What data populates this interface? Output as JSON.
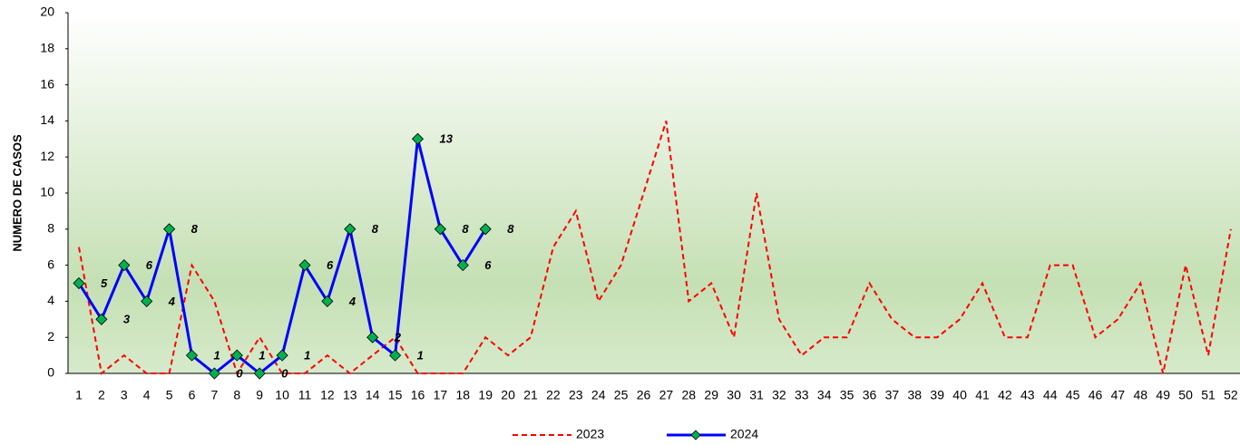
{
  "chart_data": {
    "type": "line",
    "y_label": "NUMERO DE CASOS",
    "categories": [
      1,
      2,
      3,
      4,
      5,
      6,
      7,
      8,
      9,
      10,
      11,
      12,
      13,
      14,
      15,
      16,
      17,
      18,
      19,
      20,
      21,
      22,
      23,
      24,
      25,
      26,
      27,
      28,
      29,
      30,
      31,
      32,
      33,
      34,
      35,
      36,
      37,
      38,
      39,
      40,
      41,
      42,
      43,
      44,
      45,
      46,
      47,
      48,
      49,
      50,
      51,
      52
    ],
    "series": [
      {
        "name": "2023",
        "color": "#ff0000",
        "dashed": true,
        "values": [
          7,
          0,
          1,
          0,
          0,
          6,
          4,
          0,
          2,
          0,
          0,
          1,
          0,
          1,
          2,
          0,
          0,
          0,
          2,
          1,
          2,
          7,
          9,
          4,
          6,
          10,
          14,
          4,
          5,
          2,
          10,
          3,
          1,
          2,
          2,
          5,
          3,
          2,
          2,
          3,
          5,
          2,
          2,
          6,
          6,
          2,
          3,
          5,
          0,
          6,
          1,
          8
        ]
      },
      {
        "name": "2024",
        "color": "#0000ff",
        "marker_color": "#00b050",
        "data_labels": true,
        "values": [
          5,
          3,
          6,
          4,
          8,
          1,
          0,
          1,
          0,
          1,
          6,
          4,
          8,
          2,
          1,
          13,
          8,
          6,
          8,
          null,
          null,
          null,
          null,
          null,
          null,
          null,
          null,
          null,
          null,
          null,
          null,
          null,
          null,
          null,
          null,
          null,
          null,
          null,
          null,
          null,
          null,
          null,
          null,
          null,
          null,
          null,
          null,
          null,
          null,
          null,
          null,
          null
        ]
      }
    ],
    "ylim": [
      0,
      20
    ],
    "yticks": [
      0,
      2,
      4,
      6,
      8,
      10,
      12,
      14,
      16,
      18,
      20
    ],
    "grid": false
  }
}
